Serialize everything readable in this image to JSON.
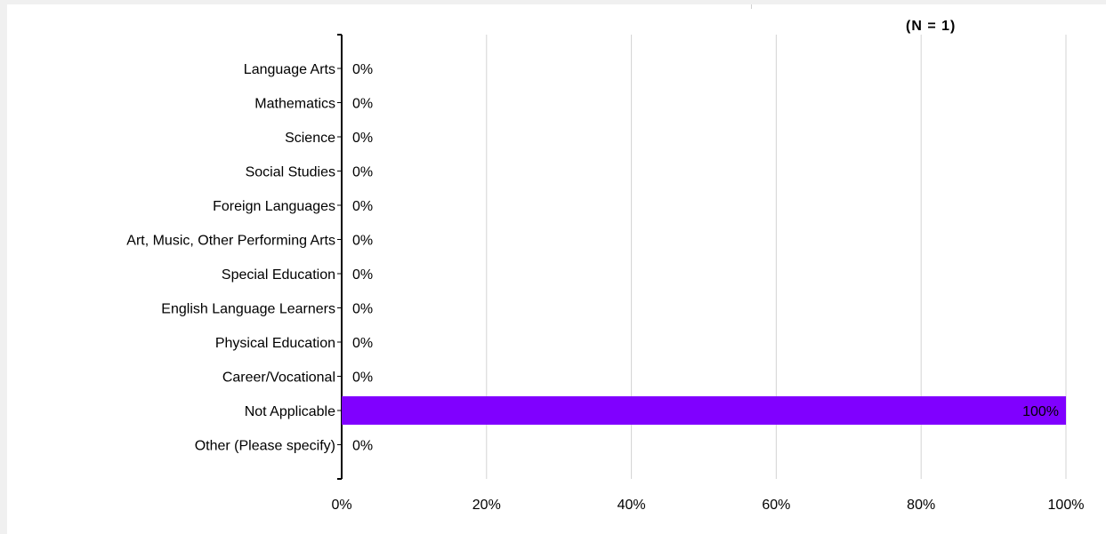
{
  "chart_data": {
    "type": "bar",
    "orientation": "horizontal",
    "annotation": "(N = 1)",
    "categories": [
      "Language Arts",
      "Mathematics",
      "Science",
      "Social Studies",
      "Foreign Languages",
      "Art, Music, Other Performing Arts",
      "Special Education",
      "English Language Learners",
      "Physical Education",
      "Career/Vocational",
      "Not Applicable",
      "Other (Please specify)"
    ],
    "values": [
      0,
      0,
      0,
      0,
      0,
      0,
      0,
      0,
      0,
      0,
      100,
      0
    ],
    "value_labels": [
      "0%",
      "0%",
      "0%",
      "0%",
      "0%",
      "0%",
      "0%",
      "0%",
      "0%",
      "0%",
      "100%",
      "0%"
    ],
    "xlim": [
      0,
      100
    ],
    "x_ticks": [
      0,
      20,
      40,
      60,
      80,
      100
    ],
    "x_tick_labels": [
      "0%",
      "20%",
      "40%",
      "60%",
      "80%",
      "100%"
    ],
    "bar_color": "#8000ff",
    "grid": "vertical",
    "legend": "none"
  }
}
